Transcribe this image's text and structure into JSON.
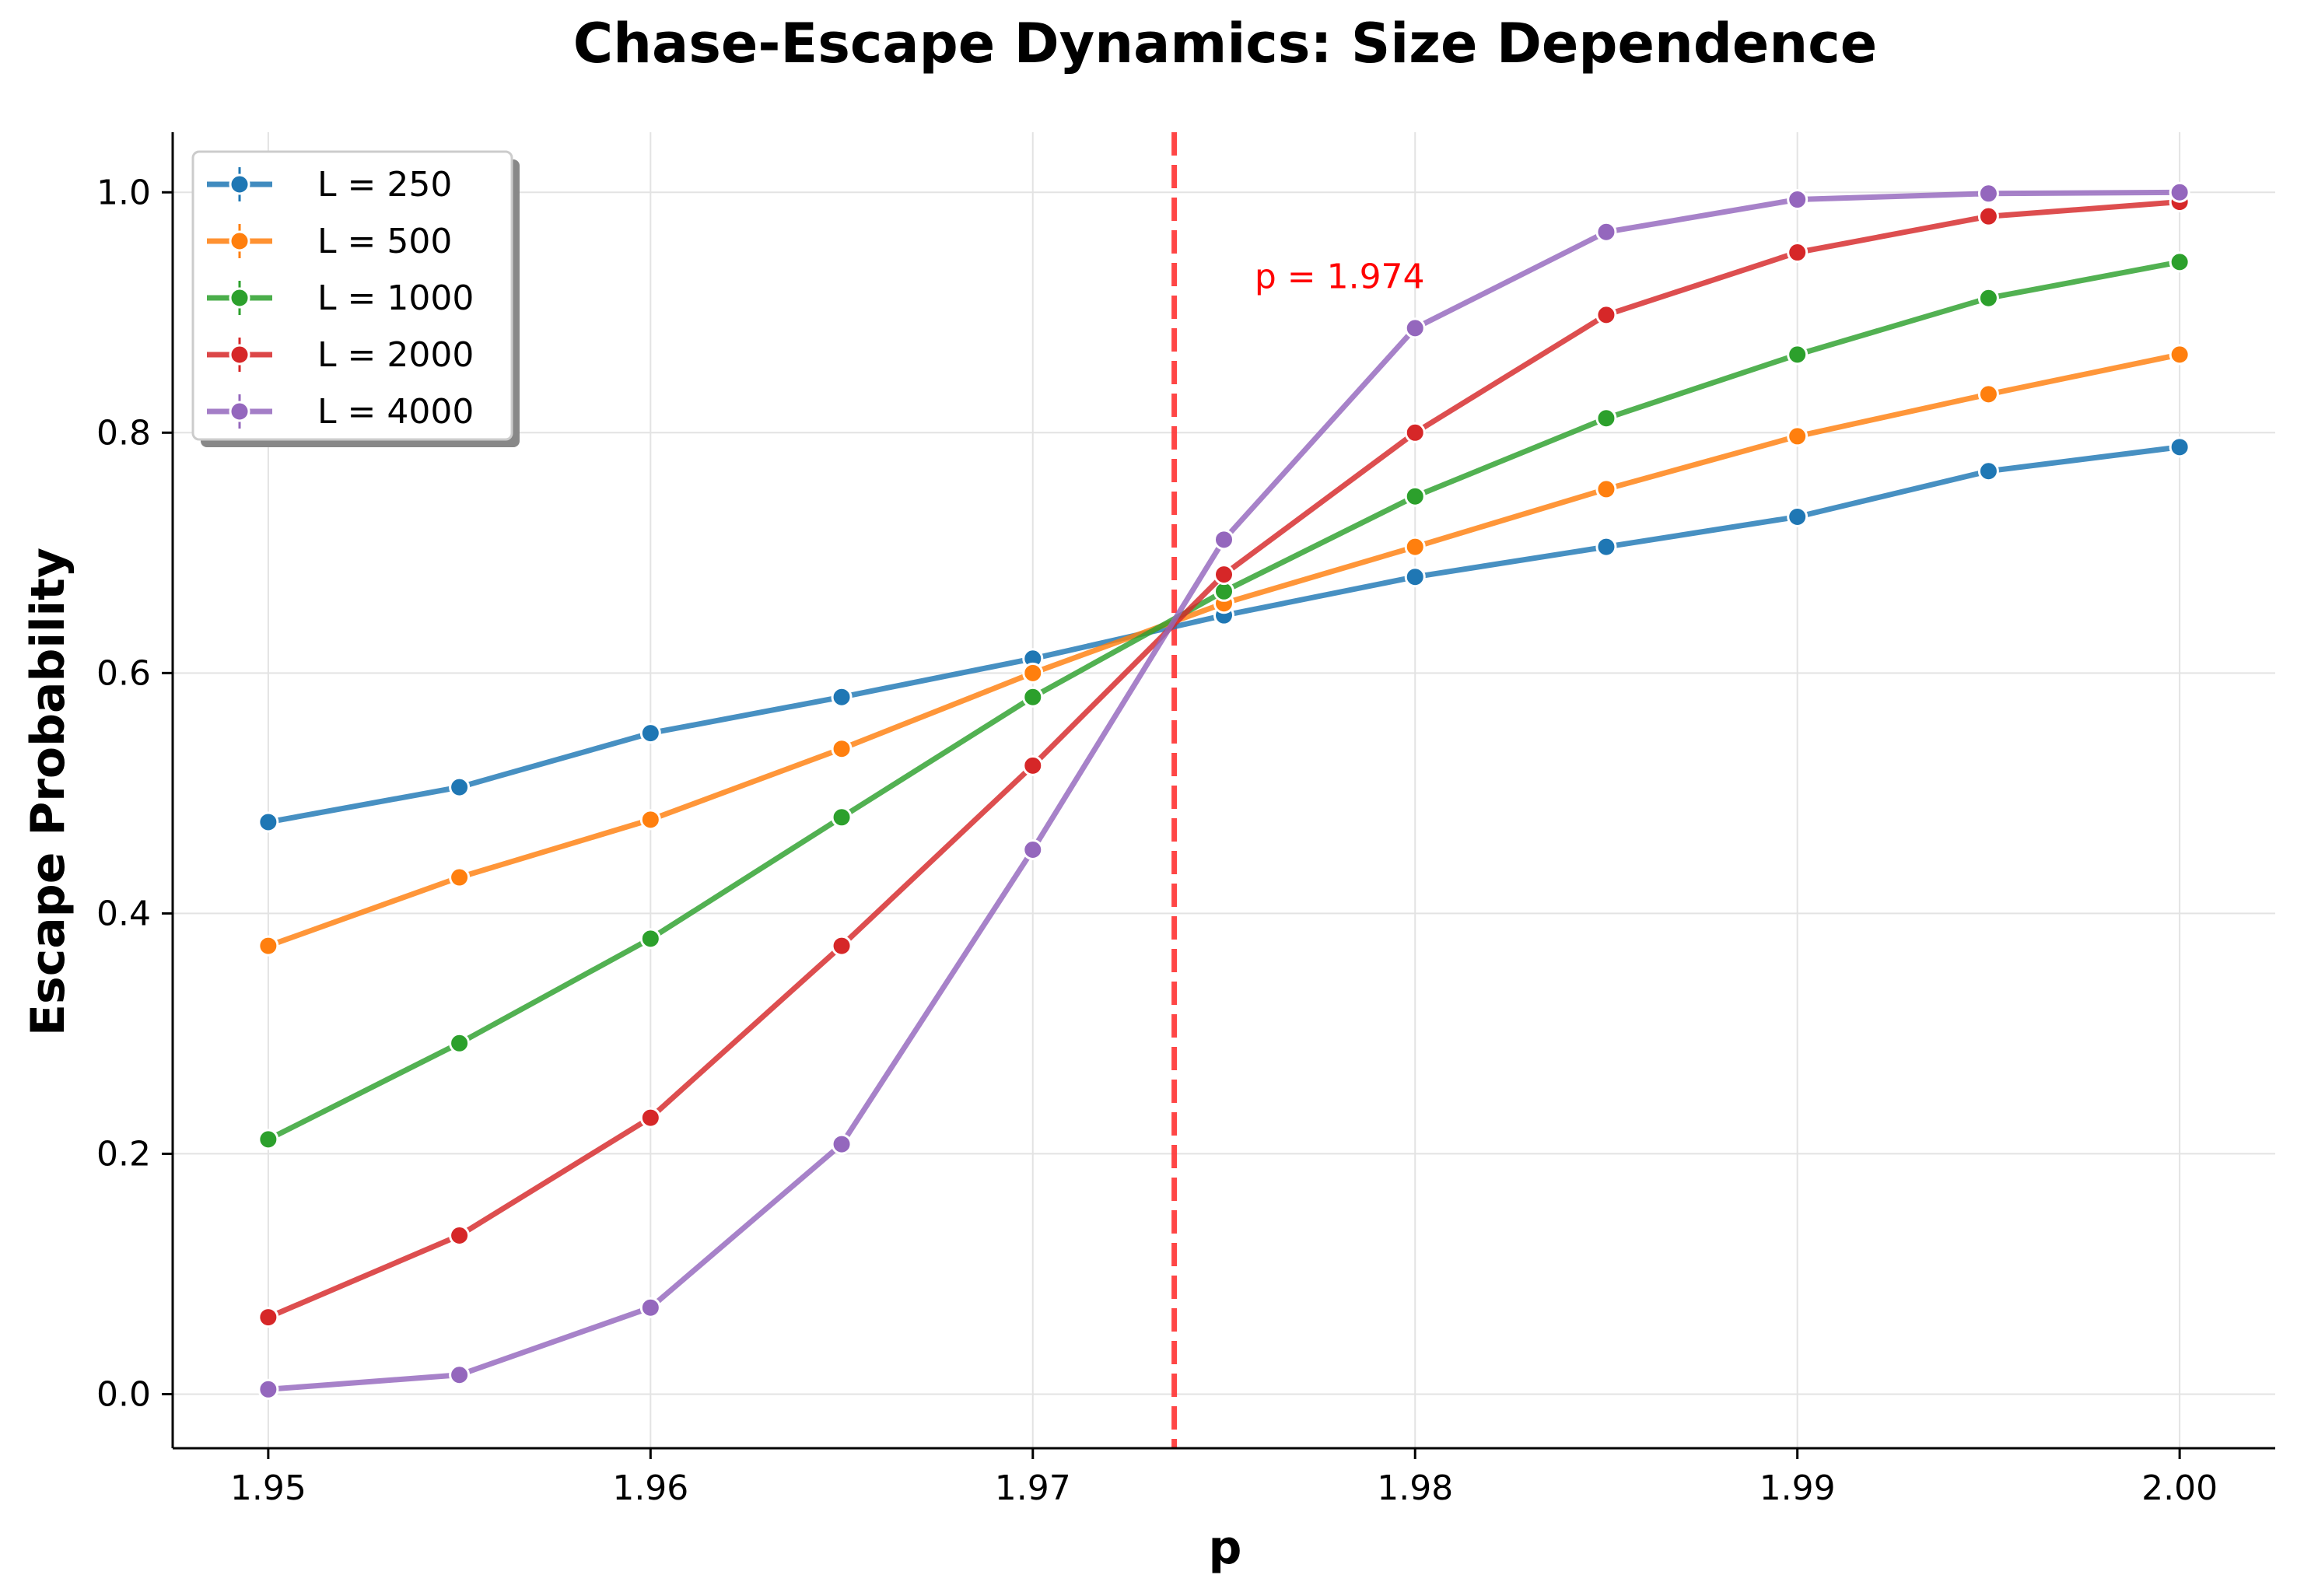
{
  "chart_data": {
    "type": "line",
    "title": "Chase-Escape Dynamics: Size Dependence",
    "xlabel": "p",
    "ylabel": "Escape Probability",
    "xlim": [
      1.9475,
      2.0025
    ],
    "ylim": [
      -0.045,
      1.05
    ],
    "x_ticks": [
      1.95,
      1.96,
      1.97,
      1.98,
      1.99,
      2.0
    ],
    "x_tick_labels": [
      "1.95",
      "1.96",
      "1.97",
      "1.98",
      "1.99",
      "2.00"
    ],
    "y_ticks": [
      0.0,
      0.2,
      0.4,
      0.6,
      0.8,
      1.0
    ],
    "y_tick_labels": [
      "0.0",
      "0.2",
      "0.4",
      "0.6",
      "0.8",
      "1.0"
    ],
    "grid": true,
    "legend_position": "top-left",
    "x": [
      1.95,
      1.955,
      1.96,
      1.965,
      1.97,
      1.975,
      1.98,
      1.985,
      1.99,
      1.995,
      2.0
    ],
    "series": [
      {
        "name": "L = 250",
        "color": "#1f77b4",
        "values": [
          0.476,
          0.505,
          0.55,
          0.58,
          0.612,
          0.648,
          0.68,
          0.705,
          0.73,
          0.768,
          0.788
        ]
      },
      {
        "name": "L = 500",
        "color": "#ff7f0e",
        "values": [
          0.373,
          0.43,
          0.478,
          0.537,
          0.6,
          0.658,
          0.705,
          0.753,
          0.797,
          0.832,
          0.865
        ]
      },
      {
        "name": "L = 1000",
        "color": "#2ca02c",
        "values": [
          0.212,
          0.292,
          0.379,
          0.48,
          0.58,
          0.668,
          0.747,
          0.812,
          0.865,
          0.912,
          0.942
        ]
      },
      {
        "name": "L = 2000",
        "color": "#d62728",
        "values": [
          0.064,
          0.132,
          0.23,
          0.373,
          0.523,
          0.682,
          0.8,
          0.898,
          0.95,
          0.98,
          0.992
        ]
      },
      {
        "name": "L = 4000",
        "color": "#9467bd",
        "values": [
          0.004,
          0.016,
          0.072,
          0.208,
          0.453,
          0.711,
          0.887,
          0.967,
          0.994,
          0.999,
          1.0
        ]
      }
    ],
    "vline": {
      "x": 1.9737,
      "color": "#ff3333"
    },
    "annotation": {
      "text": "p = 1.974",
      "x": 1.9758,
      "y": 0.93,
      "color": "#ff0000"
    }
  }
}
